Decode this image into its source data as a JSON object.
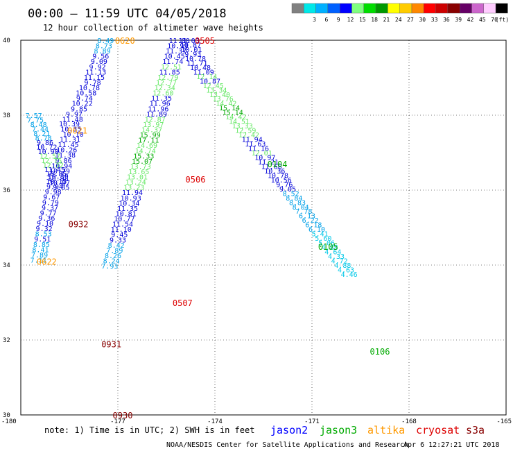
{
  "header": {
    "title": "00:00 – 11:59 UTC 04/05/2018",
    "subtitle": "12 hour collection of altimeter wave heights"
  },
  "footer": {
    "note": "note: 1) Time is in UTC; 2) SWH is in feet",
    "credit": "NOAA/NESDIS Center for Satellite Applications and Research",
    "timestamp": "Apr  6 12:27:21 UTC 2018"
  },
  "satellites": [
    {
      "name": "jason2",
      "color": "#0000ff"
    },
    {
      "name": "jason3",
      "color": "#00aa00"
    },
    {
      "name": "altika",
      "color": "#ff9900"
    },
    {
      "name": "cryosat",
      "color": "#dd0000"
    },
    {
      "name": "s3a",
      "color": "#880000"
    }
  ],
  "color_legend": {
    "unit": "(ft)",
    "bins": [
      {
        "label": "",
        "color": "#808080"
      },
      {
        "label": "3",
        "color": "#00e8e8"
      },
      {
        "label": "6",
        "color": "#00b0ff"
      },
      {
        "label": "9",
        "color": "#0060ff"
      },
      {
        "label": "12",
        "color": "#0000ff"
      },
      {
        "label": "15",
        "color": "#80ff80"
      },
      {
        "label": "18",
        "color": "#00dd00"
      },
      {
        "label": "21",
        "color": "#009900"
      },
      {
        "label": "24",
        "color": "#ffff00"
      },
      {
        "label": "27",
        "color": "#ffcc00"
      },
      {
        "label": "30",
        "color": "#ff8800"
      },
      {
        "label": "33",
        "color": "#ff0000"
      },
      {
        "label": "36",
        "color": "#cc0000"
      },
      {
        "label": "39",
        "color": "#880000"
      },
      {
        "label": "42",
        "color": "#660066"
      },
      {
        "label": "45",
        "color": "#cc66cc"
      },
      {
        "label": "70",
        "color": "#ffccff"
      },
      {
        "label": "",
        "color": "#000000"
      }
    ]
  },
  "chart_data": {
    "type": "scatter",
    "title": "00:00 – 11:59 UTC 04/05/2018",
    "subtitle": "12 hour collection of altimeter wave heights",
    "xlabel": "",
    "ylabel": "",
    "xlim": [
      -180,
      -165
    ],
    "ylim": [
      30,
      40
    ],
    "x_ticks": [
      "-180",
      "-177",
      "-174",
      "-171",
      "-168",
      "-165"
    ],
    "y_ticks": [
      "40",
      "38",
      "36",
      "34",
      "32",
      "30"
    ],
    "grid": true,
    "value_color_bins": [
      {
        "max": 6,
        "color": "#00c8e8"
      },
      {
        "max": 9,
        "color": "#00a0e8"
      },
      {
        "max": 12,
        "color": "#0000d8"
      },
      {
        "max": 15,
        "color": "#66e866"
      },
      {
        "max": 18,
        "color": "#00aa00"
      }
    ],
    "pass_labels": [
      {
        "text": "0620",
        "x": -176.78,
        "y": 40.0,
        "satellite": "altika"
      },
      {
        "text": "0505",
        "x": -174.31,
        "y": 40.0,
        "satellite": "cryosat"
      },
      {
        "text": "0621",
        "x": -178.25,
        "y": 37.6,
        "satellite": "altika"
      },
      {
        "text": "0104",
        "x": -172.07,
        "y": 36.7,
        "satellite": "jason3"
      },
      {
        "text": "0506",
        "x": -174.6,
        "y": 36.3,
        "satellite": "cryosat"
      },
      {
        "text": "0932",
        "x": -178.22,
        "y": 35.1,
        "satellite": "s3a"
      },
      {
        "text": "0105",
        "x": -170.5,
        "y": 34.5,
        "satellite": "jason3"
      },
      {
        "text": "0622",
        "x": -179.2,
        "y": 34.1,
        "satellite": "altika"
      },
      {
        "text": "0507",
        "x": -175.0,
        "y": 33.0,
        "satellite": "cryosat"
      },
      {
        "text": "0931",
        "x": -177.2,
        "y": 31.9,
        "satellite": "s3a"
      },
      {
        "text": "0106",
        "x": -168.9,
        "y": 31.7,
        "satellite": "jason3"
      },
      {
        "text": "0930",
        "x": -176.85,
        "y": 30.0,
        "satellite": "s3a"
      }
    ],
    "series": [
      {
        "name": "",
        "points": [
          {
            "x": -177.38,
            "y": 40.0,
            "v": "8.49"
          },
          {
            "x": -177.43,
            "y": 39.86,
            "v": "8.73"
          },
          {
            "x": -177.48,
            "y": 39.72,
            "v": "8.89"
          },
          {
            "x": -177.53,
            "y": 39.58,
            "v": "9.56"
          },
          {
            "x": -177.58,
            "y": 39.44,
            "v": "9.09"
          },
          {
            "x": -177.63,
            "y": 39.3,
            "v": "9.92"
          },
          {
            "x": -177.68,
            "y": 39.16,
            "v": "11.13"
          },
          {
            "x": -177.73,
            "y": 39.02,
            "v": "11.15"
          },
          {
            "x": -177.78,
            "y": 38.88,
            "v": "9.78"
          },
          {
            "x": -177.88,
            "y": 38.74,
            "v": "10.78"
          },
          {
            "x": -177.98,
            "y": 38.6,
            "v": "10.58"
          },
          {
            "x": -178.03,
            "y": 38.46,
            "v": "9.74"
          },
          {
            "x": -178.1,
            "y": 38.32,
            "v": "10.22"
          },
          {
            "x": -178.2,
            "y": 38.18,
            "v": "9.85"
          },
          {
            "x": -178.35,
            "y": 38.04,
            "v": "9.97"
          },
          {
            "x": -178.4,
            "y": 37.9,
            "v": "11.48"
          },
          {
            "x": -178.5,
            "y": 37.78,
            "v": "10.39"
          },
          {
            "x": -178.45,
            "y": 37.64,
            "v": "10.35"
          },
          {
            "x": -178.38,
            "y": 37.5,
            "v": "10.10"
          },
          {
            "x": -178.48,
            "y": 37.36,
            "v": "11.31"
          },
          {
            "x": -178.53,
            "y": 37.22,
            "v": "11.45"
          },
          {
            "x": -178.58,
            "y": 37.08,
            "v": "10.26"
          },
          {
            "x": -178.63,
            "y": 36.94,
            "v": "11.38"
          },
          {
            "x": -178.68,
            "y": 36.8,
            "v": "9.86"
          },
          {
            "x": -178.73,
            "y": 36.66,
            "v": "10.94"
          },
          {
            "x": -178.8,
            "y": 36.52,
            "v": "10.29"
          },
          {
            "x": -178.85,
            "y": 36.38,
            "v": "10.30"
          },
          {
            "x": -178.9,
            "y": 36.24,
            "v": "10.15"
          },
          {
            "x": -178.95,
            "y": 36.1,
            "v": "9.94"
          },
          {
            "x": -179.0,
            "y": 35.96,
            "v": "9.98"
          },
          {
            "x": -179.05,
            "y": 35.82,
            "v": "9.67"
          },
          {
            "x": -179.08,
            "y": 35.68,
            "v": "9.79"
          },
          {
            "x": -179.1,
            "y": 35.54,
            "v": "9.37"
          },
          {
            "x": -179.15,
            "y": 35.4,
            "v": "9.77"
          },
          {
            "x": -179.2,
            "y": 35.26,
            "v": "9.36"
          },
          {
            "x": -179.25,
            "y": 35.12,
            "v": "9.10"
          },
          {
            "x": -179.28,
            "y": 34.98,
            "v": "9.32"
          },
          {
            "x": -179.3,
            "y": 34.84,
            "v": "8.53"
          },
          {
            "x": -179.33,
            "y": 34.7,
            "v": "9.51"
          },
          {
            "x": -179.36,
            "y": 34.56,
            "v": "8.85"
          },
          {
            "x": -179.39,
            "y": 34.42,
            "v": "8.41"
          },
          {
            "x": -179.42,
            "y": 34.28,
            "v": "7.89"
          },
          {
            "x": -179.45,
            "y": 34.14,
            "v": "7.11"
          }
        ]
      },
      {
        "name": "",
        "points": [
          {
            "x": -179.6,
            "y": 38.0,
            "v": "7.57"
          },
          {
            "x": -179.55,
            "y": 37.88,
            "v": "7.75"
          },
          {
            "x": -179.45,
            "y": 37.76,
            "v": "8.48"
          },
          {
            "x": -179.4,
            "y": 37.64,
            "v": "7.44"
          },
          {
            "x": -179.35,
            "y": 37.52,
            "v": "8.21"
          },
          {
            "x": -179.3,
            "y": 37.4,
            "v": "8.78"
          },
          {
            "x": -179.25,
            "y": 37.28,
            "v": "9.86"
          },
          {
            "x": -179.2,
            "y": 37.16,
            "v": "10.72"
          },
          {
            "x": -179.15,
            "y": 37.04,
            "v": "10.90"
          },
          {
            "x": -179.1,
            "y": 36.92,
            "v": "12.57"
          },
          {
            "x": -179.05,
            "y": 36.8,
            "v": "12.75"
          },
          {
            "x": -179.0,
            "y": 36.68,
            "v": "12.32"
          },
          {
            "x": -178.95,
            "y": 36.56,
            "v": "11.45"
          },
          {
            "x": -178.9,
            "y": 36.44,
            "v": "10.85"
          },
          {
            "x": -178.85,
            "y": 36.32,
            "v": "10.98"
          },
          {
            "x": -178.8,
            "y": 36.2,
            "v": "10.07"
          },
          {
            "x": -178.75,
            "y": 36.08,
            "v": "9.85"
          }
        ]
      },
      {
        "name": "",
        "points": [
          {
            "x": -174.8,
            "y": 40.0,
            "v": "11.03"
          },
          {
            "x": -174.75,
            "y": 39.88,
            "v": "10.87"
          },
          {
            "x": -174.72,
            "y": 39.76,
            "v": "10.01"
          },
          {
            "x": -174.68,
            "y": 39.64,
            "v": "9.93"
          },
          {
            "x": -174.6,
            "y": 39.52,
            "v": "10.78"
          },
          {
            "x": -174.55,
            "y": 39.4,
            "v": "11.71"
          },
          {
            "x": -174.45,
            "y": 39.28,
            "v": "10.48"
          },
          {
            "x": -174.35,
            "y": 39.16,
            "v": "11.09"
          },
          {
            "x": -174.25,
            "y": 39.04,
            "v": "12.14"
          },
          {
            "x": -174.15,
            "y": 38.92,
            "v": "10.87"
          },
          {
            "x": -174.05,
            "y": 38.8,
            "v": "12.45"
          },
          {
            "x": -173.95,
            "y": 38.68,
            "v": "13.34"
          },
          {
            "x": -173.85,
            "y": 38.56,
            "v": "13.40"
          },
          {
            "x": -173.75,
            "y": 38.44,
            "v": "13.76"
          },
          {
            "x": -173.65,
            "y": 38.32,
            "v": "14.42"
          },
          {
            "x": -173.55,
            "y": 38.2,
            "v": "15.14"
          },
          {
            "x": -173.45,
            "y": 38.08,
            "v": "15.14"
          },
          {
            "x": -173.35,
            "y": 37.96,
            "v": "14.42"
          },
          {
            "x": -173.25,
            "y": 37.84,
            "v": "14.51"
          },
          {
            "x": -173.15,
            "y": 37.72,
            "v": "13.33"
          },
          {
            "x": -173.05,
            "y": 37.6,
            "v": "12.59"
          },
          {
            "x": -172.95,
            "y": 37.48,
            "v": "12.42"
          },
          {
            "x": -172.85,
            "y": 37.36,
            "v": "11.94"
          },
          {
            "x": -172.75,
            "y": 37.24,
            "v": "11.63"
          },
          {
            "x": -172.65,
            "y": 37.12,
            "v": "11.16"
          },
          {
            "x": -172.55,
            "y": 37.0,
            "v": "12.01"
          },
          {
            "x": -172.45,
            "y": 36.88,
            "v": "10.97"
          },
          {
            "x": -172.35,
            "y": 36.76,
            "v": "11.21"
          },
          {
            "x": -172.25,
            "y": 36.64,
            "v": "11.68"
          },
          {
            "x": -172.15,
            "y": 36.52,
            "v": "10.36"
          },
          {
            "x": -172.05,
            "y": 36.4,
            "v": "10.78"
          },
          {
            "x": -171.95,
            "y": 36.28,
            "v": "10.56"
          },
          {
            "x": -171.85,
            "y": 36.16,
            "v": "9.76"
          },
          {
            "x": -171.75,
            "y": 36.04,
            "v": "9.05"
          },
          {
            "x": -171.65,
            "y": 35.92,
            "v": "8.52"
          },
          {
            "x": -171.55,
            "y": 35.8,
            "v": "8.84"
          },
          {
            "x": -171.45,
            "y": 35.68,
            "v": "8.83"
          },
          {
            "x": -171.35,
            "y": 35.56,
            "v": "8.04"
          },
          {
            "x": -171.25,
            "y": 35.44,
            "v": "7.78"
          },
          {
            "x": -171.15,
            "y": 35.32,
            "v": "6.13"
          },
          {
            "x": -171.05,
            "y": 35.2,
            "v": "6.22"
          },
          {
            "x": -170.95,
            "y": 35.08,
            "v": "6.18"
          },
          {
            "x": -170.85,
            "y": 34.96,
            "v": "6.10"
          },
          {
            "x": -170.75,
            "y": 34.84,
            "v": "5.41"
          },
          {
            "x": -170.65,
            "y": 34.72,
            "v": "5.60"
          },
          {
            "x": -170.55,
            "y": 34.6,
            "v": "5.06"
          },
          {
            "x": -170.45,
            "y": 34.48,
            "v": "4.88"
          },
          {
            "x": -170.35,
            "y": 34.36,
            "v": "4.64"
          },
          {
            "x": -170.25,
            "y": 34.24,
            "v": "4.33"
          },
          {
            "x": -170.15,
            "y": 34.12,
            "v": "4.72"
          },
          {
            "x": -170.05,
            "y": 34.0,
            "v": "4.88"
          },
          {
            "x": -169.95,
            "y": 33.88,
            "v": "4.63"
          },
          {
            "x": -169.85,
            "y": 33.76,
            "v": "4.46"
          }
        ]
      },
      {
        "name": "",
        "points": [
          {
            "x": -175.1,
            "y": 40.0,
            "v": "11.00"
          },
          {
            "x": -175.15,
            "y": 39.86,
            "v": "10.99"
          },
          {
            "x": -175.2,
            "y": 39.72,
            "v": "11.37"
          },
          {
            "x": -175.25,
            "y": 39.58,
            "v": "10.45"
          },
          {
            "x": -175.3,
            "y": 39.44,
            "v": "11.74"
          },
          {
            "x": -175.35,
            "y": 39.3,
            "v": "12.51"
          },
          {
            "x": -175.4,
            "y": 39.16,
            "v": "11.85"
          },
          {
            "x": -175.45,
            "y": 39.02,
            "v": "12.79"
          },
          {
            "x": -175.5,
            "y": 38.88,
            "v": "12.77"
          },
          {
            "x": -175.55,
            "y": 38.74,
            "v": "12.34"
          },
          {
            "x": -175.6,
            "y": 38.6,
            "v": "12.60"
          },
          {
            "x": -175.65,
            "y": 38.46,
            "v": "11.35"
          },
          {
            "x": -175.7,
            "y": 38.32,
            "v": "11.96"
          },
          {
            "x": -175.75,
            "y": 38.18,
            "v": "11.96"
          },
          {
            "x": -175.8,
            "y": 38.04,
            "v": "11.89"
          },
          {
            "x": -175.85,
            "y": 37.9,
            "v": "12.87"
          },
          {
            "x": -175.9,
            "y": 37.76,
            "v": "13.97"
          },
          {
            "x": -175.95,
            "y": 37.62,
            "v": "14.37"
          },
          {
            "x": -176.0,
            "y": 37.48,
            "v": "15.99"
          },
          {
            "x": -176.05,
            "y": 37.34,
            "v": "17.11"
          },
          {
            "x": -176.1,
            "y": 37.2,
            "v": "14.69"
          },
          {
            "x": -176.15,
            "y": 37.06,
            "v": "14.74"
          },
          {
            "x": -176.2,
            "y": 36.92,
            "v": "15.33"
          },
          {
            "x": -176.25,
            "y": 36.78,
            "v": "15.07"
          },
          {
            "x": -176.3,
            "y": 36.64,
            "v": "13.73"
          },
          {
            "x": -176.35,
            "y": 36.5,
            "v": "13.65"
          },
          {
            "x": -176.4,
            "y": 36.36,
            "v": "13.01"
          },
          {
            "x": -176.45,
            "y": 36.22,
            "v": "13.24"
          },
          {
            "x": -176.5,
            "y": 36.08,
            "v": "13.23"
          },
          {
            "x": -176.55,
            "y": 35.94,
            "v": "11.94"
          },
          {
            "x": -176.6,
            "y": 35.8,
            "v": "10.93"
          },
          {
            "x": -176.65,
            "y": 35.66,
            "v": "10.34"
          },
          {
            "x": -176.7,
            "y": 35.52,
            "v": "11.35"
          },
          {
            "x": -176.75,
            "y": 35.38,
            "v": "10.81"
          },
          {
            "x": -176.8,
            "y": 35.24,
            "v": "10.77"
          },
          {
            "x": -176.85,
            "y": 35.1,
            "v": "11.54"
          },
          {
            "x": -176.9,
            "y": 34.96,
            "v": "11.10"
          },
          {
            "x": -176.95,
            "y": 34.82,
            "v": "9.45"
          },
          {
            "x": -177.0,
            "y": 34.68,
            "v": "9.33"
          },
          {
            "x": -177.05,
            "y": 34.54,
            "v": "8.42"
          },
          {
            "x": -177.1,
            "y": 34.4,
            "v": "7.89"
          },
          {
            "x": -177.15,
            "y": 34.26,
            "v": "8.26"
          },
          {
            "x": -177.2,
            "y": 34.12,
            "v": "8.24"
          },
          {
            "x": -177.25,
            "y": 33.98,
            "v": "7.93"
          }
        ]
      }
    ]
  }
}
